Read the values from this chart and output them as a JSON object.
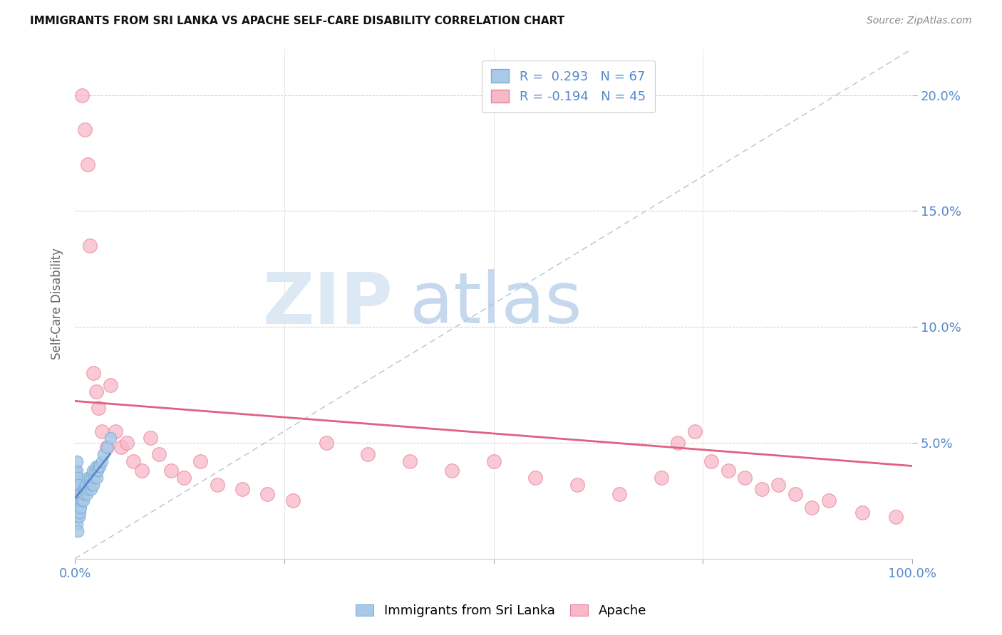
{
  "title": "IMMIGRANTS FROM SRI LANKA VS APACHE SELF-CARE DISABILITY CORRELATION CHART",
  "source": "Source: ZipAtlas.com",
  "ylabel_label": "Self-Care Disability",
  "xlim": [
    0.0,
    1.0
  ],
  "ylim": [
    0.0,
    0.22
  ],
  "xtick_positions": [
    0.0,
    0.25,
    0.5,
    0.75,
    1.0
  ],
  "xtick_labels": [
    "0.0%",
    "",
    "",
    "",
    "100.0%"
  ],
  "ytick_positions": [
    0.05,
    0.1,
    0.15,
    0.2
  ],
  "ytick_labels": [
    "5.0%",
    "10.0%",
    "15.0%",
    "20.0%"
  ],
  "grid_color": "#cccccc",
  "background_color": "#ffffff",
  "sri_lanka_color": "#aac9e8",
  "sri_lanka_edge": "#7aafd4",
  "apache_color": "#f7b8c8",
  "apache_edge": "#e8809a",
  "trendline_sri_lanka_color": "#5588cc",
  "trendline_apache_color": "#e06080",
  "diagonal_color": "#b0c4d8",
  "sri_lanka_points_x": [
    0.001,
    0.001,
    0.001,
    0.001,
    0.001,
    0.001,
    0.001,
    0.001,
    0.001,
    0.001,
    0.002,
    0.002,
    0.002,
    0.002,
    0.002,
    0.002,
    0.002,
    0.002,
    0.002,
    0.002,
    0.003,
    0.003,
    0.003,
    0.003,
    0.003,
    0.003,
    0.003,
    0.003,
    0.004,
    0.004,
    0.004,
    0.004,
    0.005,
    0.005,
    0.005,
    0.006,
    0.006,
    0.007,
    0.007,
    0.008,
    0.009,
    0.01,
    0.01,
    0.011,
    0.012,
    0.013,
    0.014,
    0.015,
    0.016,
    0.017,
    0.018,
    0.019,
    0.02,
    0.02,
    0.021,
    0.022,
    0.023,
    0.024,
    0.025,
    0.026,
    0.027,
    0.028,
    0.03,
    0.032,
    0.034,
    0.038,
    0.042
  ],
  "sri_lanka_points_y": [
    0.02,
    0.025,
    0.028,
    0.03,
    0.032,
    0.033,
    0.034,
    0.035,
    0.037,
    0.038,
    0.015,
    0.02,
    0.025,
    0.028,
    0.03,
    0.032,
    0.033,
    0.035,
    0.038,
    0.042,
    0.012,
    0.018,
    0.022,
    0.025,
    0.028,
    0.03,
    0.032,
    0.035,
    0.02,
    0.025,
    0.028,
    0.032,
    0.018,
    0.022,
    0.028,
    0.02,
    0.025,
    0.022,
    0.028,
    0.025,
    0.028,
    0.025,
    0.03,
    0.028,
    0.03,
    0.032,
    0.028,
    0.035,
    0.03,
    0.032,
    0.035,
    0.03,
    0.032,
    0.035,
    0.038,
    0.032,
    0.035,
    0.038,
    0.04,
    0.035,
    0.038,
    0.04,
    0.04,
    0.042,
    0.045,
    0.048,
    0.052
  ],
  "apache_points_x": [
    0.008,
    0.012,
    0.015,
    0.018,
    0.022,
    0.025,
    0.028,
    0.032,
    0.038,
    0.042,
    0.048,
    0.055,
    0.062,
    0.07,
    0.08,
    0.09,
    0.1,
    0.115,
    0.13,
    0.15,
    0.17,
    0.2,
    0.23,
    0.26,
    0.3,
    0.35,
    0.4,
    0.45,
    0.5,
    0.55,
    0.6,
    0.65,
    0.7,
    0.72,
    0.74,
    0.76,
    0.78,
    0.8,
    0.82,
    0.84,
    0.86,
    0.88,
    0.9,
    0.94,
    0.98
  ],
  "apache_points_y": [
    0.2,
    0.185,
    0.17,
    0.135,
    0.08,
    0.072,
    0.065,
    0.055,
    0.048,
    0.075,
    0.055,
    0.048,
    0.05,
    0.042,
    0.038,
    0.052,
    0.045,
    0.038,
    0.035,
    0.042,
    0.032,
    0.03,
    0.028,
    0.025,
    0.05,
    0.045,
    0.042,
    0.038,
    0.042,
    0.035,
    0.032,
    0.028,
    0.035,
    0.05,
    0.055,
    0.042,
    0.038,
    0.035,
    0.03,
    0.032,
    0.028,
    0.022,
    0.025,
    0.02,
    0.018
  ],
  "apache_trendline_x0": 0.0,
  "apache_trendline_y0": 0.068,
  "apache_trendline_x1": 1.0,
  "apache_trendline_y1": 0.04,
  "sri_trendline_x0": 0.0,
  "sri_trendline_y0": 0.028,
  "sri_trendline_x1": 0.042,
  "sri_trendline_y1": 0.05
}
